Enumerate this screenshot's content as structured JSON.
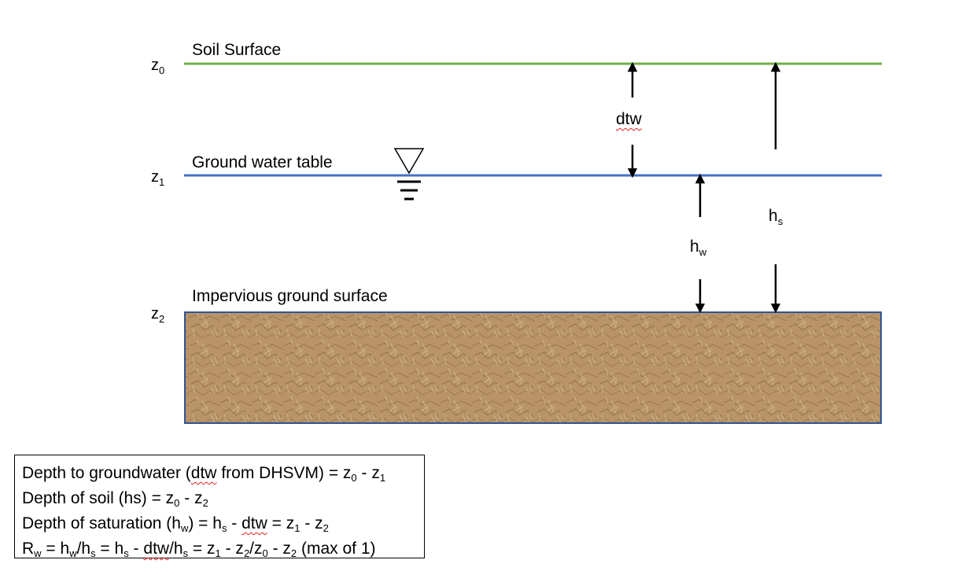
{
  "layers": {
    "soil_surface": "Soil Surface",
    "water_table": "Ground water table",
    "impervious": "Impervious ground surface"
  },
  "levels": {
    "z0": {
      "base": "z",
      "sub": "0"
    },
    "z1": {
      "base": "z",
      "sub": "1"
    },
    "z2": {
      "base": "z",
      "sub": "2"
    }
  },
  "dimensions": {
    "dtw": "dtw",
    "hw": {
      "base": "h",
      "sub": "w"
    },
    "hs": {
      "base": "h",
      "sub": "s"
    }
  },
  "colors": {
    "soil_surface_line": "#70ad47",
    "water_table_line": "#4472c4",
    "soil_fill": "#b89468",
    "soil_border": "#2f5597"
  },
  "legend": {
    "line1": {
      "a": "Depth to groundwater (",
      "b": "dtw",
      "c": " from DHSVM) = z",
      "d": "0",
      "e": " - z",
      "f": "1"
    },
    "line2": {
      "a": "Depth of soil (hs) = z",
      "b": "0",
      "c": " - z",
      "d": "2"
    },
    "line3": {
      "a": "Depth of saturation (h",
      "b": "w",
      "c": ") = h",
      "d": "s",
      "e": " - ",
      "f": "dtw",
      "g": " = z",
      "h": "1",
      "i": " - z",
      "j": "2"
    },
    "line4": {
      "a": "R",
      "b": "w",
      "c": " = h",
      "d": "w",
      "e": "/h",
      "f": "s",
      "g": " = h",
      "h": "s",
      "i": " - ",
      "j": "dtw",
      "k": "/h",
      "l": "s",
      "m": " = z",
      "n": "1",
      "o": " - z",
      "p": "2",
      "q": "/z",
      "r": "0",
      "s": " - z",
      "t": "2",
      "u": " (max of 1)"
    }
  }
}
